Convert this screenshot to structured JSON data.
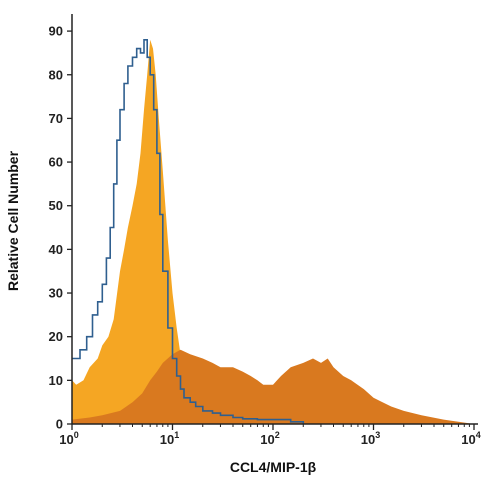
{
  "chart_data": {
    "type": "area",
    "xlabel": "CCL4/MIP-1β",
    "ylabel": "Relative Cell Number",
    "x_scale": "log",
    "xlim": [
      1,
      10000
    ],
    "ylim": [
      0,
      93
    ],
    "grid": false,
    "x_ticks": [
      {
        "value": 1,
        "base": "10",
        "exp": "0"
      },
      {
        "value": 10,
        "base": "10",
        "exp": "1"
      },
      {
        "value": 100,
        "base": "10",
        "exp": "2"
      },
      {
        "value": 1000,
        "base": "10",
        "exp": "3"
      },
      {
        "value": 10000,
        "base": "10",
        "exp": "4"
      }
    ],
    "y_ticks": [
      0,
      10,
      20,
      30,
      40,
      50,
      60,
      70,
      80,
      90
    ],
    "colors": {
      "light_orange": "#f5a623",
      "dark_orange": "#d9791f",
      "outline": "#2f5f8f",
      "axis": "#222222"
    },
    "series": [
      {
        "style": "filled",
        "color": "#f5a623",
        "x": [
          1,
          1.1,
          1.3,
          1.5,
          1.8,
          2,
          2.3,
          2.6,
          3,
          3.3,
          3.6,
          4,
          4.4,
          4.8,
          5.2,
          5.6,
          6,
          6.4,
          6.8,
          7.3,
          8,
          9,
          10,
          11,
          12,
          14,
          17,
          20,
          25,
          30,
          40,
          50,
          70,
          100,
          150,
          200,
          300,
          500,
          1000
        ],
        "y": [
          10,
          9,
          10,
          13,
          15,
          18,
          20,
          24,
          35,
          40,
          45,
          50,
          55,
          62,
          72,
          80,
          88,
          86,
          80,
          70,
          58,
          42,
          30,
          22,
          16,
          11,
          8,
          5,
          4,
          3,
          2,
          1.5,
          1,
          0.5,
          0.3,
          0.2,
          0.1,
          0,
          0
        ]
      },
      {
        "style": "filled",
        "color": "#d9791f",
        "x": [
          1,
          1.5,
          2,
          3,
          4,
          5,
          6,
          7,
          8,
          10,
          12,
          15,
          20,
          25,
          30,
          40,
          50,
          60,
          70,
          80,
          100,
          120,
          150,
          200,
          250,
          300,
          350,
          400,
          500,
          600,
          800,
          1000,
          1500,
          2000,
          3000,
          5000,
          7000,
          10000
        ],
        "y": [
          1,
          1.5,
          2,
          3,
          5,
          7,
          10,
          12,
          14,
          16,
          17,
          16,
          15,
          14,
          13,
          13,
          12,
          11,
          10,
          9,
          9,
          11,
          13,
          14,
          15,
          14,
          15,
          13,
          11,
          10,
          8,
          6,
          4,
          3,
          2,
          1,
          0.5,
          0
        ]
      },
      {
        "style": "outline",
        "color": "#2f5f8f",
        "x": [
          1,
          1.2,
          1.4,
          1.6,
          1.8,
          2,
          2.2,
          2.4,
          2.6,
          2.8,
          3,
          3.3,
          3.6,
          4,
          4.4,
          4.8,
          5.2,
          5.6,
          6,
          6.5,
          7,
          7.5,
          8,
          9,
          10,
          11,
          12,
          13,
          15,
          17,
          20,
          25,
          30,
          40,
          50,
          70,
          100,
          150,
          200
        ],
        "y": [
          15,
          17,
          20,
          25,
          28,
          32,
          38,
          45,
          55,
          65,
          72,
          78,
          82,
          84,
          86,
          85,
          88,
          84,
          80,
          72,
          62,
          48,
          35,
          22,
          15,
          11,
          8,
          6,
          5,
          4,
          3,
          2.5,
          2,
          1.5,
          1.2,
          1,
          1,
          0.5,
          0
        ]
      }
    ]
  }
}
